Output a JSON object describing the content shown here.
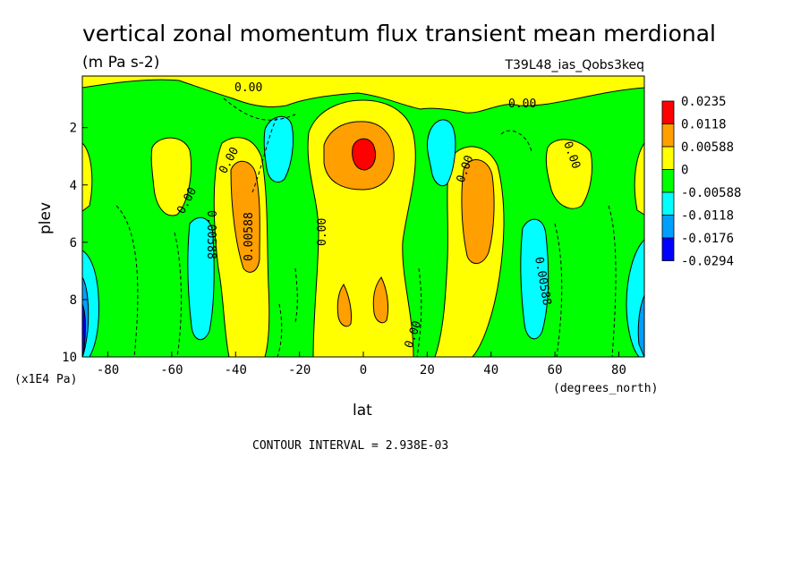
{
  "chart_data": {
    "type": "heatmap",
    "title": "vertical zonal momentum flux transient mean merdional",
    "units": "(m Pa s-2)",
    "dataset_label": "T39L48_ias_Qobs3keq",
    "xlabel": "lat",
    "x_units": "(degrees_north)",
    "ylabel": "plev",
    "y_units": "(x1E4 Pa)",
    "xlim": [
      -88,
      88
    ],
    "ylim": [
      10,
      0.2
    ],
    "x_ticks": [
      "-80",
      "-60",
      "-40",
      "-20",
      "0",
      "20",
      "40",
      "60",
      "80"
    ],
    "y_ticks": [
      "2",
      "4",
      "6",
      "8",
      "10"
    ],
    "contour_interval_text": "CONTOUR INTERVAL = 2.938E-03",
    "colorbar": {
      "labels": [
        "0.0235",
        "0.0118",
        "0.00588",
        "0",
        "-0.00588",
        "-0.0118",
        "-0.0176",
        "-0.0294"
      ],
      "colors": [
        "#ff0000",
        "#ff9f00",
        "#ffff00",
        "#00ff00",
        "#00ffff",
        "#009fff",
        "#0000ff"
      ]
    },
    "contour_labels": [
      "0.00",
      "0.00",
      "0.00",
      "0.00",
      "0.00",
      "0.00",
      "0.00",
      "0.00588",
      "0.00588",
      "0.00",
      "0.00588",
      "0.00",
      "0.00"
    ],
    "grid": false,
    "legend_placement": "right"
  }
}
